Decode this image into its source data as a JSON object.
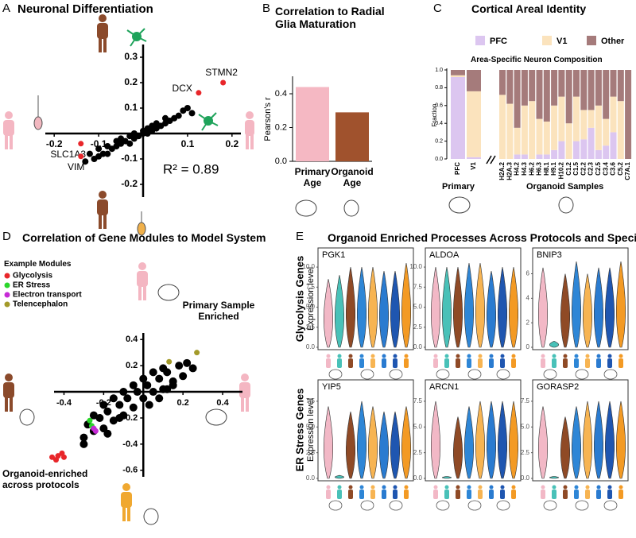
{
  "chart_data": [
    {
      "panel": "A",
      "type": "scatter",
      "title": "Neuronal Differentiation",
      "annotation": "R² = 0.89",
      "xlim": [
        -0.22,
        0.22
      ],
      "ylim": [
        -0.25,
        0.35
      ],
      "xticks": [
        -0.2,
        -0.1,
        0.1,
        0.2
      ],
      "yticks": [
        -0.2,
        -0.1,
        0.1,
        0.2,
        0.3
      ],
      "points": {
        "color": "#000000",
        "x": [
          -0.12,
          -0.11,
          -0.1,
          -0.1,
          -0.09,
          -0.08,
          -0.08,
          -0.07,
          -0.06,
          -0.06,
          -0.05,
          -0.05,
          -0.04,
          -0.03,
          -0.03,
          -0.02,
          -0.02,
          -0.01,
          0,
          0,
          0.01,
          0.01,
          0.02,
          0.02,
          0.03,
          0.03,
          0.04,
          0.05,
          0.05,
          0.06,
          0.07,
          0.08,
          0.09,
          0.1,
          -0.13,
          0.11
        ],
        "y": [
          -0.08,
          -0.1,
          -0.06,
          -0.09,
          -0.08,
          -0.05,
          -0.08,
          -0.06,
          -0.05,
          -0.03,
          -0.04,
          -0.02,
          -0.03,
          -0.04,
          -0.01,
          -0.02,
          0,
          -0.01,
          0,
          0.01,
          0,
          0.02,
          0.01,
          0.03,
          0.02,
          0.04,
          0.03,
          0.04,
          0.06,
          0.05,
          0.06,
          0.07,
          0.09,
          0.1,
          -0.11,
          0.08
        ]
      },
      "labeled_color": "#e8262a",
      "labeled_points": [
        {
          "label": "STMN2",
          "x": 0.18,
          "y": 0.2
        },
        {
          "label": "DCX",
          "x": 0.125,
          "y": 0.16
        },
        {
          "label": "SLC1A3",
          "x": -0.14,
          "y": -0.04
        },
        {
          "label": "VIM",
          "x": -0.14,
          "y": -0.09
        }
      ]
    },
    {
      "panel": "B",
      "type": "bar",
      "title": "Correlation to Radial Glia Maturation",
      "ylabel": "Pearson's r",
      "categories": [
        "Primary Age",
        "Organoid Age"
      ],
      "values": [
        0.44,
        0.29
      ],
      "colors": [
        "#f5b8c3",
        "#a0522d"
      ],
      "ylim": [
        0,
        0.48
      ],
      "yticks": [
        {
          "value": 0,
          "label": "0.0"
        },
        0.2,
        0.4
      ]
    },
    {
      "panel": "C",
      "type": "stacked_bar",
      "title": "Cortical Areal Identity",
      "subtitle": "Area-Specific Neuron Composition",
      "ylabel": "Fraction",
      "group_labels": [
        "Primary",
        "Organoid Samples"
      ],
      "categories": [
        "PFC",
        "V1",
        "H2A.2",
        "H2A.3",
        "H4.2",
        "H4.3",
        "H6.2",
        "H6.3",
        "H8.1",
        "H9.1",
        "H10.2",
        "C1.2",
        "C1.5",
        "C2.2",
        "C2.3",
        "C2.5",
        "C3.4",
        "C3.6",
        "C5.2",
        "C7A.1"
      ],
      "ylim": [
        0,
        1
      ],
      "yticks": [
        {
          "value": 0,
          "label": "0.0"
        },
        0.2,
        0.4,
        0.6,
        0.8,
        {
          "value": 1,
          "label": "1.0"
        }
      ],
      "series": [
        {
          "name": "PFC",
          "color": "#dcc6f0",
          "values": [
            0.92,
            0.02,
            0,
            0,
            0.05,
            0.05,
            0,
            0.05,
            0.05,
            0.1,
            0.2,
            0,
            0.2,
            0.22,
            0.35,
            0.1,
            0.15,
            0.3,
            0,
            0
          ]
        },
        {
          "name": "V1",
          "color": "#fbe3bd",
          "values": [
            0.02,
            0.74,
            0.72,
            0.62,
            0.3,
            0.55,
            0.65,
            0.4,
            0.37,
            0.5,
            0.5,
            0.4,
            0.5,
            0.33,
            0.2,
            0.5,
            0.3,
            0.4,
            0.65,
            0
          ]
        },
        {
          "name": "Other",
          "color": "#a57b7b",
          "values": [
            0.06,
            0.24,
            0.28,
            0.38,
            0.65,
            0.4,
            0.35,
            0.55,
            0.58,
            0.4,
            0.3,
            0.6,
            0.3,
            0.45,
            0.45,
            0.4,
            0.55,
            0.3,
            0.35,
            1
          ]
        }
      ]
    },
    {
      "panel": "D",
      "type": "scatter",
      "title": "Correlation of Gene Modules to Model System",
      "legend_title": "Example Modules",
      "annotations": [
        "Primary Sample Enriched",
        "Organoid-enriched across protocols"
      ],
      "xlim": [
        -0.45,
        0.5
      ],
      "ylim": [
        -0.65,
        0.45
      ],
      "xticks": [
        -0.4,
        -0.2,
        0.2,
        0.4
      ],
      "yticks": [
        -0.6,
        -0.4,
        -0.2,
        0.2,
        0.4
      ],
      "points": {
        "color": "#000000",
        "x": [
          -0.3,
          -0.28,
          -0.25,
          -0.22,
          -0.2,
          -0.18,
          -0.15,
          -0.12,
          -0.1,
          -0.08,
          -0.05,
          -0.03,
          0,
          0.02,
          0.05,
          0.08,
          0.1,
          0.12,
          0.15,
          0.18,
          0.2,
          0.22,
          -0.2,
          -0.15,
          -0.1,
          -0.05,
          0,
          0.05,
          0.1,
          0.15,
          -0.25,
          -0.12,
          0.03,
          0.08,
          0.25,
          -0.3,
          -0.18,
          0.12
        ],
        "y": [
          -0.35,
          -0.25,
          -0.3,
          -0.2,
          -0.28,
          -0.15,
          -0.22,
          -0.1,
          -0.18,
          -0.05,
          -0.12,
          0,
          -0.05,
          0.05,
          0,
          0.1,
          0.02,
          0.15,
          0.08,
          0.2,
          0.12,
          0.22,
          -0.1,
          -0.05,
          0,
          0.05,
          0.1,
          0.15,
          0.18,
          0.05,
          -0.18,
          -0.2,
          -0.1,
          -0.05,
          0.18,
          -0.4,
          -0.32,
          0.02
        ]
      },
      "series": [
        {
          "name": "Glycolysis",
          "color": "#e8262a",
          "x": [
            -0.46,
            -0.43,
            -0.41,
            -0.4,
            -0.44
          ],
          "y": [
            -0.5,
            -0.49,
            -0.47,
            -0.5,
            -0.52
          ]
        },
        {
          "name": "ER Stress",
          "color": "#2bd62b",
          "x": [
            -0.27,
            -0.26
          ],
          "y": [
            -0.22,
            -0.26
          ]
        },
        {
          "name": "Electron transport",
          "color": "#c62bd6",
          "x": [
            -0.25,
            -0.24
          ],
          "y": [
            -0.28,
            -0.3
          ]
        },
        {
          "name": "Telencephalon",
          "color": "#a39a2a",
          "x": [
            0.13,
            0.27
          ],
          "y": [
            0.23,
            0.3
          ]
        }
      ]
    },
    {
      "panel": "E",
      "type": "violin",
      "title": "Organoid Enriched Processes Across Protocols and Species",
      "ylabel": "Expression level",
      "row_labels": [
        "Glycolysis Genes",
        "ER Stress Genes"
      ],
      "colors": [
        "#f2b8c6",
        "#49c1b8",
        "#8f4a26",
        "#2e86d6",
        "#f7b452",
        "#2a7bd0",
        "#1f56b0",
        "#f39a24"
      ],
      "panels": [
        {
          "gene": "PGK1",
          "ylim": [
            0,
            11
          ],
          "yticks": [
            {
              "value": 0,
              "label": "0.0"
            },
            2.5,
            {
              "value": 5,
              "label": "5.0"
            },
            7.5,
            {
              "value": 10,
              "label": "10.0"
            }
          ],
          "values": [
            8.5,
            9,
            10,
            10,
            10,
            9.5,
            9.5,
            10.5
          ]
        },
        {
          "gene": "ALDOA",
          "ylim": [
            0,
            11
          ],
          "yticks": [
            {
              "value": 0,
              "label": "0.0"
            },
            2.5,
            {
              "value": 5,
              "label": "5.0"
            },
            7.5,
            {
              "value": 10,
              "label": "10.0"
            }
          ],
          "values": [
            10,
            10,
            10,
            10.5,
            10.5,
            9.5,
            10,
            10
          ]
        },
        {
          "gene": "BNIP3",
          "ylim": [
            0,
            7.2
          ],
          "yticks": [
            0,
            2,
            4,
            6
          ],
          "values": [
            6.5,
            0.5,
            6,
            7,
            6,
            6.5,
            6.5,
            7
          ]
        },
        {
          "gene": "YIP5",
          "ylim": [
            0,
            8.5
          ],
          "yticks": [
            {
              "value": 0,
              "label": "0.0"
            },
            2.5,
            {
              "value": 5,
              "label": "5.0"
            },
            7.5
          ],
          "values": [
            7,
            0.3,
            6.5,
            7.5,
            7,
            6.5,
            6.5,
            7
          ]
        },
        {
          "gene": "ARCN1",
          "ylim": [
            0,
            8.5
          ],
          "yticks": [
            {
              "value": 0,
              "label": "0.0"
            },
            2.5,
            {
              "value": 5,
              "label": "5.0"
            },
            7.5
          ],
          "values": [
            7.5,
            0.2,
            6,
            7,
            7.5,
            7.5,
            7.5,
            7.5
          ]
        },
        {
          "gene": "GORASP2",
          "ylim": [
            0,
            8.5
          ],
          "yticks": [
            {
              "value": 0,
              "label": "0.0"
            },
            2.5,
            {
              "value": 5,
              "label": "5.0"
            },
            7.5
          ],
          "values": [
            7,
            0.2,
            6,
            7,
            7.5,
            7.5,
            7.5,
            7.5
          ]
        }
      ]
    }
  ]
}
